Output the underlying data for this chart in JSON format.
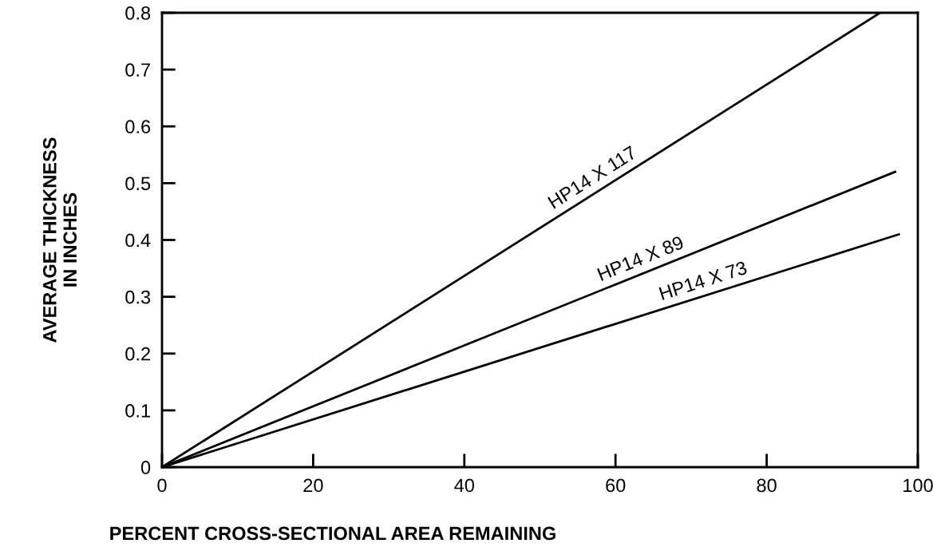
{
  "chart_data": {
    "type": "line",
    "xlabel": "PERCENT CROSS-SECTIONAL AREA REMAINING",
    "ylabel": "AVERAGE THICKNESS\nIN INCHES",
    "series": [
      {
        "name": "HP14 X 117",
        "x": [
          0,
          95
        ],
        "values": [
          0,
          0.8
        ],
        "color": "#000000"
      },
      {
        "name": "HP14 X 89",
        "x": [
          0,
          97
        ],
        "values": [
          0,
          0.52
        ],
        "color": "#000000"
      },
      {
        "name": "HP14 X 73",
        "x": [
          0,
          97.5
        ],
        "values": [
          0,
          0.41
        ],
        "color": "#000000"
      }
    ],
    "xlim": [
      0,
      100
    ],
    "ylim": [
      0,
      0.8
    ],
    "xticks": [
      0,
      20,
      40,
      60,
      80,
      100
    ],
    "yticks": [
      0,
      0.1,
      0.2,
      0.3,
      0.4,
      0.5,
      0.6,
      0.7,
      0.8
    ],
    "grid": false,
    "legend": false,
    "marker": "none",
    "line_style": "solid"
  }
}
